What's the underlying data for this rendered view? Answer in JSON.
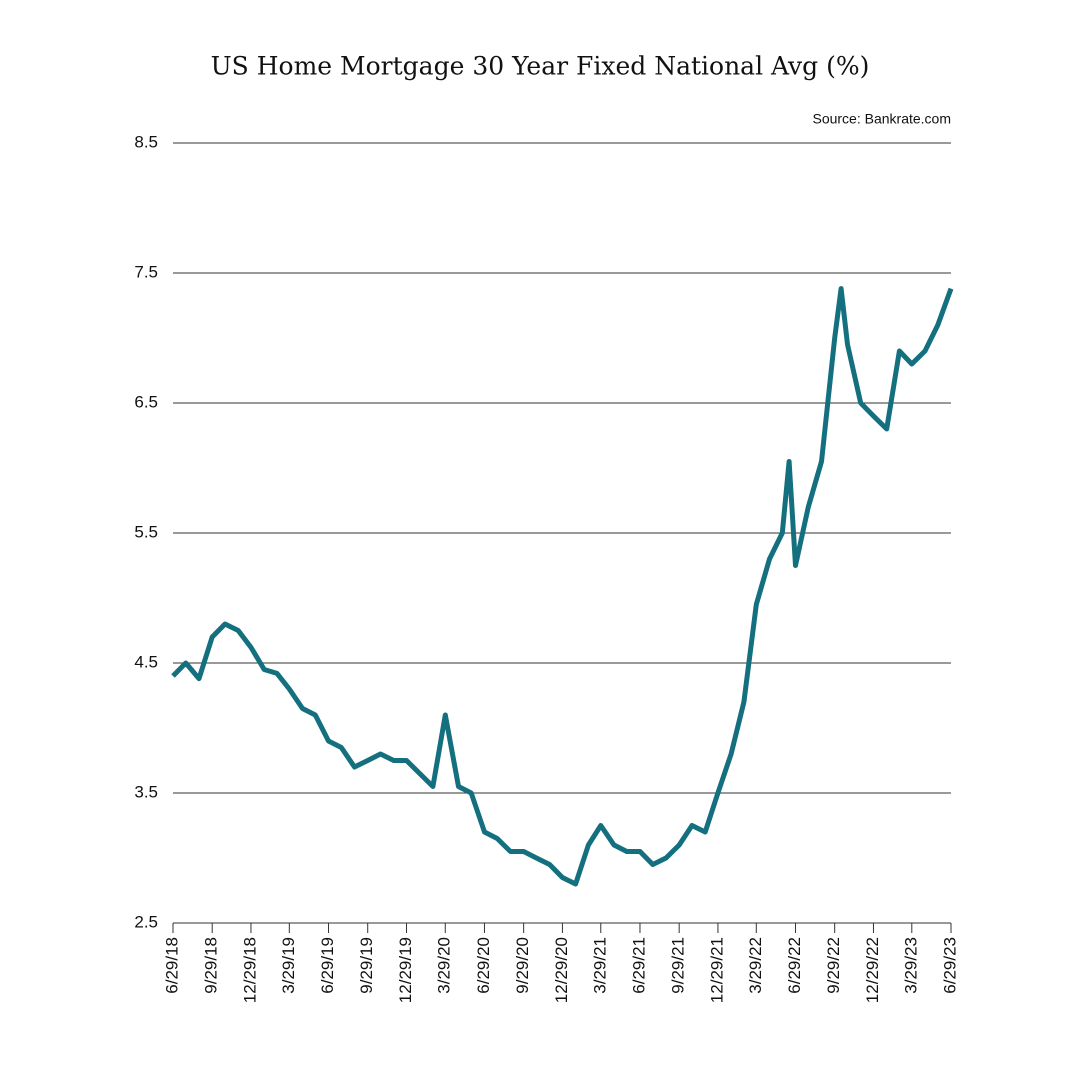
{
  "chart_data": {
    "type": "line",
    "title": "US Home Mortgage 30 Year Fixed National Avg (%)",
    "source": "Source: Bankrate.com",
    "x": [
      "6/29/18",
      "7/29/18",
      "8/29/18",
      "9/29/18",
      "10/29/18",
      "11/29/18",
      "12/29/18",
      "1/29/19",
      "2/28/19",
      "3/29/19",
      "4/29/19",
      "5/29/19",
      "6/29/19",
      "7/29/19",
      "8/29/19",
      "9/29/19",
      "10/29/19",
      "11/29/19",
      "12/29/19",
      "1/29/20",
      "2/29/20",
      "3/29/20",
      "4/29/20",
      "5/29/20",
      "6/29/20",
      "7/29/20",
      "8/29/20",
      "9/29/20",
      "10/29/20",
      "11/29/20",
      "12/29/20",
      "1/29/21",
      "2/28/21",
      "3/29/21",
      "4/29/21",
      "5/29/21",
      "6/29/21",
      "7/29/21",
      "8/29/21",
      "9/29/21",
      "10/29/21",
      "11/29/21",
      "12/29/21",
      "1/29/22",
      "2/28/22",
      "3/29/22",
      "4/29/22",
      "5/29/22",
      "6/14/22",
      "6/29/22",
      "7/29/22",
      "8/29/22",
      "9/29/22",
      "10/14/22",
      "10/29/22",
      "11/29/22",
      "12/29/22",
      "1/29/23",
      "2/28/23",
      "3/29/23",
      "4/29/23",
      "5/29/23",
      "6/29/23"
    ],
    "series": [
      {
        "name": "30 Year Fixed",
        "color": "#14707f",
        "values": [
          4.4,
          4.5,
          4.38,
          4.7,
          4.8,
          4.75,
          4.62,
          4.45,
          4.42,
          4.3,
          4.15,
          4.1,
          3.9,
          3.85,
          3.7,
          3.75,
          3.8,
          3.75,
          3.75,
          3.65,
          3.55,
          4.1,
          3.55,
          3.5,
          3.2,
          3.15,
          3.05,
          3.05,
          3.0,
          2.95,
          2.85,
          2.8,
          3.1,
          3.25,
          3.1,
          3.05,
          3.05,
          2.95,
          3.0,
          3.1,
          3.25,
          3.2,
          3.5,
          3.8,
          4.2,
          4.95,
          5.3,
          5.5,
          6.05,
          5.25,
          5.7,
          6.05,
          7.0,
          7.38,
          6.95,
          6.5,
          6.4,
          6.3,
          6.9,
          6.8,
          6.9,
          7.1,
          7.38
        ]
      }
    ],
    "xlim": [
      "6/29/18",
      "6/29/23"
    ],
    "xticks": [
      "6/29/18",
      "9/29/18",
      "12/29/18",
      "3/29/19",
      "6/29/19",
      "9/29/19",
      "12/29/19",
      "3/29/20",
      "6/29/20",
      "9/29/20",
      "12/29/20",
      "3/29/21",
      "6/29/21",
      "9/29/21",
      "12/29/21",
      "3/29/22",
      "6/29/22",
      "9/29/22",
      "12/29/22",
      "3/29/23",
      "6/29/23"
    ],
    "ylim": [
      2.5,
      8.5
    ],
    "yticks": [
      2.5,
      3.5,
      4.5,
      5.5,
      6.5,
      7.5,
      8.5
    ],
    "grid": true
  }
}
